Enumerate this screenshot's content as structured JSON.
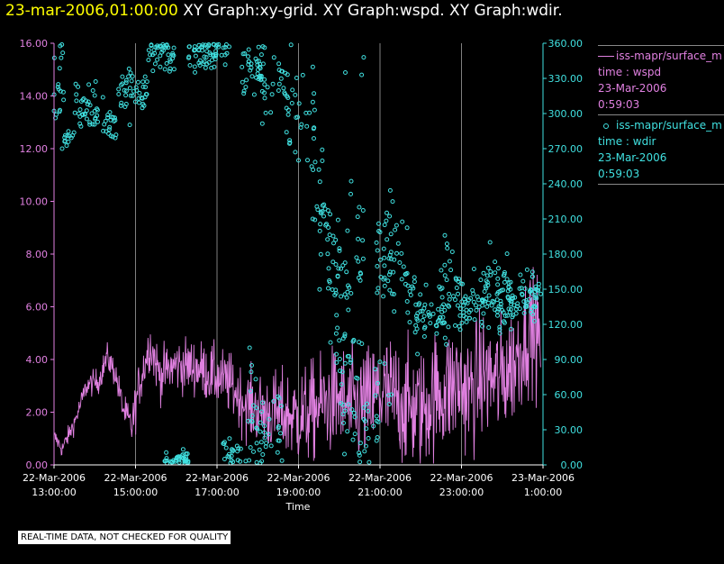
{
  "header": {
    "timestamp": "23-mar-2006,01:00:00",
    "graph_titles": "XY Graph:xy-grid.  XY Graph:wspd.  XY Graph:wdir."
  },
  "colors": {
    "background": "#000000",
    "wspd": "#e080e0",
    "wdir": "#40e0e0",
    "timestamp": "#ffff00",
    "grid": "#808080",
    "axis_text": "#ffffff"
  },
  "legend": {
    "wspd": {
      "series": "iss-mapr/surface_m",
      "field": "time : wspd",
      "date": "23-Mar-2006",
      "time": "0:59:03"
    },
    "wdir": {
      "series": "iss-mapr/surface_m",
      "field": "time : wdir",
      "date": "23-Mar-2006",
      "time": "0:59:03"
    }
  },
  "disclaimer": "REAL-TIME DATA, NOT CHECKED FOR QUALITY",
  "chart_data": {
    "type": "line",
    "xlabel": "Time",
    "x_range_hours": [
      13,
      25
    ],
    "x_ticks": [
      {
        "date": "22-Mar-2006",
        "time": "13:00:00",
        "hour": 13
      },
      {
        "date": "22-Mar-2006",
        "time": "15:00:00",
        "hour": 15
      },
      {
        "date": "22-Mar-2006",
        "time": "17:00:00",
        "hour": 17
      },
      {
        "date": "22-Mar-2006",
        "time": "19:00:00",
        "hour": 19
      },
      {
        "date": "22-Mar-2006",
        "time": "21:00:00",
        "hour": 21
      },
      {
        "date": "22-Mar-2006",
        "time": "23:00:00",
        "hour": 23
      },
      {
        "date": "23-Mar-2006",
        "time": "1:00:00",
        "hour": 25
      }
    ],
    "y_left": {
      "label": "wspd",
      "range": [
        0,
        16
      ],
      "ticks": [
        "0.00",
        "2.00",
        "4.00",
        "6.00",
        "8.00",
        "10.00",
        "12.00",
        "14.00",
        "16.00"
      ]
    },
    "y_right": {
      "label": "wdir",
      "range": [
        0,
        360
      ],
      "ticks": [
        "0.00",
        "30.00",
        "60.00",
        "90.00",
        "120.00",
        "150.00",
        "180.00",
        "210.00",
        "240.00",
        "270.00",
        "300.00",
        "330.00",
        "360.00"
      ]
    },
    "series": [
      {
        "name": "wspd",
        "style": "line",
        "axis": "left",
        "anchors": [
          [
            13.0,
            1.1
          ],
          [
            13.2,
            0.6
          ],
          [
            13.5,
            1.6
          ],
          [
            13.8,
            3.0
          ],
          [
            14.1,
            3.2
          ],
          [
            14.3,
            4.1
          ],
          [
            14.5,
            3.5
          ],
          [
            14.7,
            2.1
          ],
          [
            14.9,
            1.4
          ],
          [
            15.1,
            3.1
          ],
          [
            15.35,
            4.6
          ],
          [
            15.6,
            3.4
          ],
          [
            16.0,
            3.8
          ],
          [
            16.5,
            3.7
          ],
          [
            16.9,
            3.4
          ],
          [
            17.3,
            3.1
          ],
          [
            17.7,
            2.3
          ],
          [
            18.2,
            2.0
          ],
          [
            18.7,
            1.9
          ],
          [
            19.0,
            1.8
          ],
          [
            19.3,
            2.0
          ],
          [
            19.6,
            2.3
          ],
          [
            20.0,
            2.5
          ],
          [
            20.3,
            2.1
          ],
          [
            20.7,
            2.3
          ],
          [
            21.0,
            2.7
          ],
          [
            21.4,
            2.5
          ],
          [
            21.7,
            2.2
          ],
          [
            22.0,
            2.0
          ],
          [
            22.3,
            2.6
          ],
          [
            22.6,
            2.8
          ],
          [
            22.9,
            3.1
          ],
          [
            23.2,
            2.7
          ],
          [
            23.5,
            3.4
          ],
          [
            23.9,
            3.2
          ],
          [
            24.3,
            3.9
          ],
          [
            24.7,
            5.3
          ],
          [
            24.95,
            4.6
          ]
        ],
        "noise": [
          [
            13.0,
            0.15
          ],
          [
            14.7,
            0.3
          ],
          [
            15.0,
            0.45
          ],
          [
            17.5,
            0.6
          ],
          [
            19.0,
            0.9
          ],
          [
            21.0,
            1.15
          ],
          [
            23.0,
            1.2
          ],
          [
            24.95,
            1.1
          ]
        ]
      },
      {
        "name": "wdir",
        "style": "scatter",
        "axis": "right",
        "clusters": [
          [
            13.0,
            13.25,
            320,
            20,
            18
          ],
          [
            13.25,
            13.5,
            282,
            6,
            12
          ],
          [
            13.5,
            14.2,
            305,
            10,
            40
          ],
          [
            14.2,
            14.55,
            292,
            8,
            20
          ],
          [
            14.55,
            14.9,
            320,
            12,
            20
          ],
          [
            14.9,
            15.3,
            318,
            10,
            24
          ],
          [
            15.3,
            15.95,
            352,
            8,
            40
          ],
          [
            15.7,
            16.3,
            5,
            5,
            40
          ],
          [
            16.3,
            17.3,
            352,
            8,
            60
          ],
          [
            17.15,
            17.6,
            10,
            12,
            22
          ],
          [
            17.6,
            18.1,
            340,
            12,
            28
          ],
          [
            17.7,
            18.6,
            25,
            20,
            45
          ],
          [
            18.0,
            18.7,
            330,
            14,
            35
          ],
          [
            18.7,
            19.4,
            295,
            25,
            35
          ],
          [
            19.4,
            19.8,
            220,
            28,
            25
          ],
          [
            19.7,
            20.6,
            165,
            32,
            60
          ],
          [
            20.0,
            20.6,
            60,
            30,
            30
          ],
          [
            20.6,
            21.0,
            30,
            20,
            10
          ],
          [
            20.9,
            21.7,
            175,
            25,
            55
          ],
          [
            20.5,
            21.3,
            70,
            25,
            15
          ],
          [
            21.7,
            22.2,
            130,
            15,
            30
          ],
          [
            22.2,
            22.7,
            125,
            15,
            30
          ],
          [
            22.4,
            22.85,
            165,
            25,
            12
          ],
          [
            22.8,
            23.2,
            135,
            12,
            30
          ],
          [
            23.2,
            23.6,
            140,
            12,
            25
          ],
          [
            23.6,
            24.2,
            150,
            12,
            45
          ],
          [
            23.6,
            24.2,
            130,
            10,
            15
          ],
          [
            24.2,
            24.95,
            143,
            10,
            60
          ]
        ],
        "outliers": [
          [
            20.15,
            335
          ],
          [
            20.6,
            348
          ],
          [
            20.55,
            333
          ],
          [
            17.8,
            100
          ],
          [
            17.85,
            85
          ],
          [
            19.0,
            260
          ],
          [
            19.35,
            210
          ],
          [
            22.65,
            185
          ],
          [
            23.7,
            190
          ],
          [
            13.2,
            270
          ]
        ]
      }
    ]
  }
}
